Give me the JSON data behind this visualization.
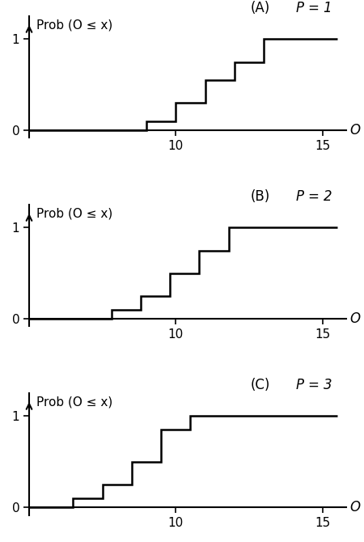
{
  "panels": [
    {
      "label": "A",
      "pumping": "1",
      "step_x": [
        5,
        9.0,
        9.0,
        10.0,
        10.0,
        11.0,
        11.0,
        12.0,
        12.0,
        13.0,
        13.0,
        15.5
      ],
      "step_y": [
        0,
        0,
        0.1,
        0.1,
        0.3,
        0.3,
        0.55,
        0.55,
        0.75,
        0.75,
        1.0,
        1.0
      ]
    },
    {
      "label": "B",
      "pumping": "2",
      "step_x": [
        5,
        7.8,
        7.8,
        8.8,
        8.8,
        9.8,
        9.8,
        10.8,
        10.8,
        11.8,
        11.8,
        15.5
      ],
      "step_y": [
        0,
        0,
        0.1,
        0.1,
        0.25,
        0.25,
        0.5,
        0.5,
        0.75,
        0.75,
        1.0,
        1.0
      ]
    },
    {
      "label": "C",
      "pumping": "3",
      "step_x": [
        5,
        6.5,
        6.5,
        7.5,
        7.5,
        8.5,
        8.5,
        9.5,
        9.5,
        10.5,
        10.5,
        15.5
      ],
      "step_y": [
        0,
        0,
        0.1,
        0.1,
        0.25,
        0.25,
        0.5,
        0.5,
        0.85,
        0.85,
        1.0,
        1.0
      ]
    }
  ],
  "xlim": [
    5,
    15.8
  ],
  "ylim": [
    -0.08,
    1.25
  ],
  "xticks": [
    5,
    10,
    15
  ],
  "yticks": [
    0,
    1
  ],
  "xlabel": "O",
  "ylabel": "Prob (O ≤ x)",
  "line_color": "#000000",
  "line_width": 1.8,
  "bg_color": "#ffffff",
  "tick_fontsize": 11,
  "panel_label_fontsize": 12,
  "ylabel_fontsize": 11
}
